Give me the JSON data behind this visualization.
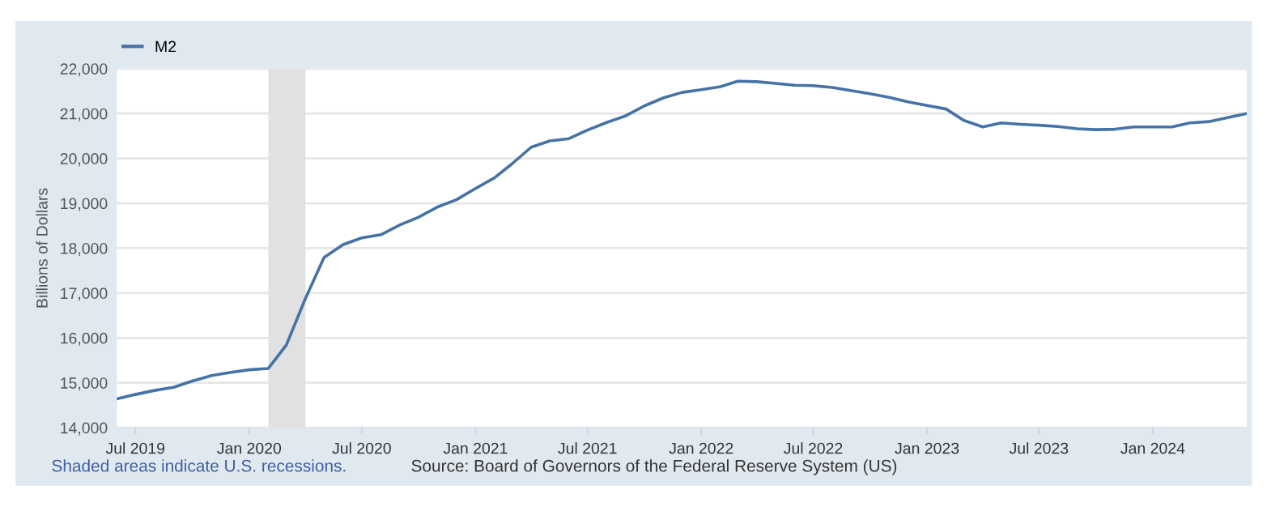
{
  "chart_data": {
    "type": "line",
    "ylabel": "Billions of Dollars",
    "x": [
      "2019-06",
      "2019-07",
      "2019-08",
      "2019-09",
      "2019-10",
      "2019-11",
      "2019-12",
      "2020-01",
      "2020-02",
      "2020-03",
      "2020-04",
      "2020-05",
      "2020-06",
      "2020-07",
      "2020-08",
      "2020-09",
      "2020-10",
      "2020-11",
      "2020-12",
      "2021-01",
      "2021-02",
      "2021-03",
      "2021-04",
      "2021-05",
      "2021-06",
      "2021-07",
      "2021-08",
      "2021-09",
      "2021-10",
      "2021-11",
      "2021-12",
      "2022-01",
      "2022-02",
      "2022-03",
      "2022-04",
      "2022-05",
      "2022-06",
      "2022-07",
      "2022-08",
      "2022-09",
      "2022-10",
      "2022-11",
      "2022-12",
      "2023-01",
      "2023-02",
      "2023-03",
      "2023-04",
      "2023-05",
      "2023-06",
      "2023-07",
      "2023-08",
      "2023-09",
      "2023-10",
      "2023-11",
      "2023-12",
      "2024-01",
      "2024-02",
      "2024-03",
      "2024-04",
      "2024-05",
      "2024-06"
    ],
    "series": [
      {
        "name": "M2",
        "color": "#4572a7",
        "values": [
          14640,
          14740,
          14830,
          14900,
          15040,
          15160,
          15230,
          15290,
          15320,
          15840,
          16880,
          17790,
          18080,
          18230,
          18300,
          18520,
          18690,
          18920,
          19080,
          19330,
          19570,
          19880,
          20250,
          20390,
          20440,
          20630,
          20800,
          20950,
          21170,
          21350,
          21470,
          21530,
          21600,
          21720,
          21710,
          21670,
          21630,
          21620,
          21580,
          21510,
          21440,
          21360,
          21260,
          21180,
          21100,
          20850,
          20700,
          20790,
          20760,
          20740,
          20710,
          20660,
          20640,
          20650,
          20700,
          20700,
          20700,
          20790,
          20820,
          20910,
          21000
        ]
      }
    ],
    "xlim": [
      "2019-06-01",
      "2024-06-01"
    ],
    "xticks": [
      {
        "value": "2019-07-01",
        "label": "Jul 2019"
      },
      {
        "value": "2020-01-01",
        "label": "Jan 2020"
      },
      {
        "value": "2020-07-01",
        "label": "Jul 2020"
      },
      {
        "value": "2021-01-01",
        "label": "Jan 2021"
      },
      {
        "value": "2021-07-01",
        "label": "Jul 2021"
      },
      {
        "value": "2022-01-01",
        "label": "Jan 2022"
      },
      {
        "value": "2022-07-01",
        "label": "Jul 2022"
      },
      {
        "value": "2023-01-01",
        "label": "Jan 2023"
      },
      {
        "value": "2023-07-01",
        "label": "Jul 2023"
      },
      {
        "value": "2024-01-01",
        "label": "Jan 2024"
      }
    ],
    "ylim": [
      14000,
      22000
    ],
    "yticks": [
      {
        "value": 14000,
        "label": "14,000"
      },
      {
        "value": 15000,
        "label": "15,000"
      },
      {
        "value": 16000,
        "label": "16,000"
      },
      {
        "value": 17000,
        "label": "17,000"
      },
      {
        "value": 18000,
        "label": "18,000"
      },
      {
        "value": 19000,
        "label": "19,000"
      },
      {
        "value": 20000,
        "label": "20,000"
      },
      {
        "value": 21000,
        "label": "21,000"
      },
      {
        "value": 22000,
        "label": "22,000"
      }
    ],
    "bands": [
      {
        "axis": "x",
        "from": "2020-02-01",
        "to": "2020-04-01",
        "color": "#e1e1e1"
      }
    ],
    "grid": "y",
    "legend": "top left",
    "marker": "none",
    "line_style": "solid",
    "annotations": [
      "Shaded areas indicate U.S. recessions.",
      "Source: Board of Governors of the Federal Reserve System (US)"
    ]
  }
}
